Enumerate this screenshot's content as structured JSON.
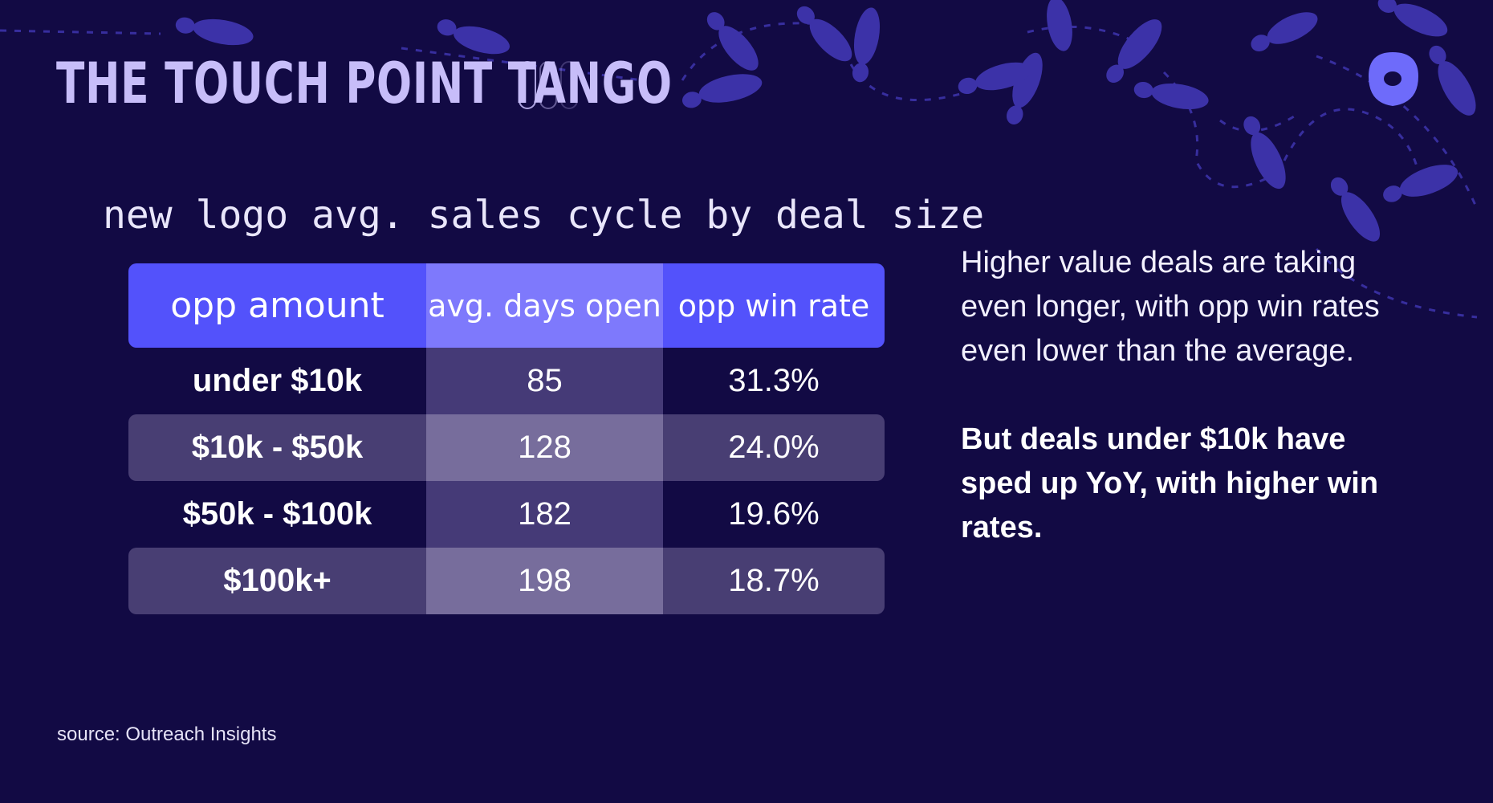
{
  "header": {
    "title": "THE TOUCH POINT TANGO"
  },
  "subtitle": "new logo avg. sales cycle by deal size",
  "table": {
    "columns": [
      "opp amount",
      "avg. days open",
      "opp win rate"
    ],
    "rows": [
      {
        "opp_amount": "under $10k",
        "avg_days_open": "85",
        "opp_win_rate": "31.3%"
      },
      {
        "opp_amount": "$10k - $50k",
        "avg_days_open": "128",
        "opp_win_rate": "24.0%"
      },
      {
        "opp_amount": "$50k - $100k",
        "avg_days_open": "182",
        "opp_win_rate": "19.6%"
      },
      {
        "opp_amount": "$100k+",
        "avg_days_open": "198",
        "opp_win_rate": "18.7%"
      }
    ]
  },
  "commentary": {
    "paragraph1": "Higher value deals are taking even longer, with opp win rates even lower than the average.",
    "paragraph2": "But deals under $10k have sped up YoY, with higher win rates."
  },
  "source": "source: Outreach Insights",
  "colors": {
    "background": "#120a44",
    "header_blue": "#5352fb",
    "header_light": "#7e79fc",
    "band_dark": "#483e73",
    "band_light": "#776d9c",
    "title": "#c7bdf9",
    "footprints": "#3c32a8",
    "brand_logo": "#6e6bfa"
  },
  "icons": {
    "brand": "outreach-logo-icon",
    "decor": "footprint-icon"
  }
}
